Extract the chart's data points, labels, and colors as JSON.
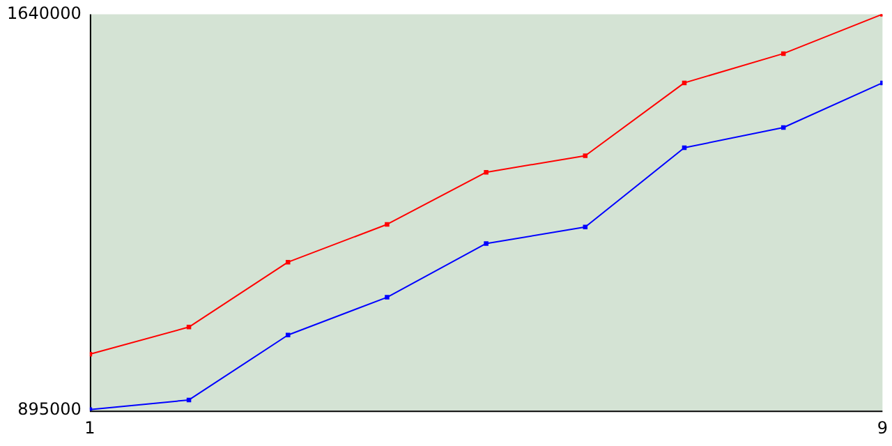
{
  "chart_data": {
    "type": "line",
    "x": [
      1,
      2,
      3,
      4,
      5,
      6,
      7,
      8,
      9
    ],
    "xlim": [
      1,
      9
    ],
    "xticks": [
      1,
      9
    ],
    "ylim": [
      895000,
      1640000
    ],
    "yticks": [
      895000,
      1640000
    ],
    "grid": false,
    "legend": false,
    "marker": "square",
    "series": [
      {
        "color": "#ff0000",
        "values": [
          1001000,
          1052000,
          1174000,
          1245000,
          1343000,
          1374000,
          1511000,
          1566000,
          1640000
        ]
      },
      {
        "color": "#0000ff",
        "values": [
          897000,
          915000,
          1037000,
          1108000,
          1209000,
          1240000,
          1389000,
          1427000,
          1511000
        ]
      }
    ]
  }
}
